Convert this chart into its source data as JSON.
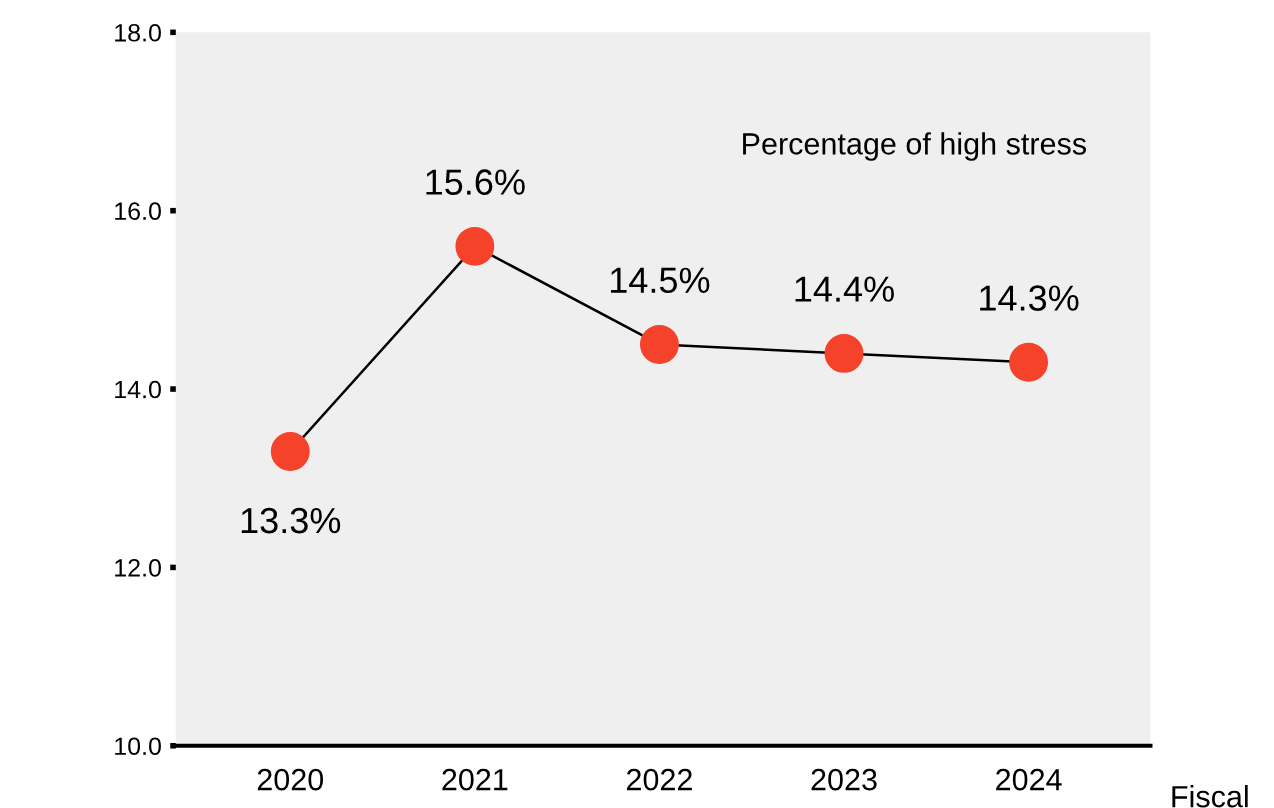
{
  "chart_data": {
    "type": "line",
    "xlabel": "Fiscal",
    "categories": [
      "2020",
      "2021",
      "2022",
      "2023",
      "2024"
    ],
    "series": [
      {
        "color": "#f5432b",
        "values": [
          13.3,
          15.6,
          14.5,
          14.4,
          14.3
        ],
        "value_labels": [
          "13.3%",
          "15.6%",
          "14.5%",
          "14.4%",
          "14.3%"
        ]
      }
    ],
    "annotations": [
      "Percentage of high stress"
    ],
    "ylim": [
      10,
      18
    ],
    "yticks": [
      {
        "value": 10,
        "label": "10.0"
      },
      {
        "value": 12,
        "label": "12.0"
      },
      {
        "value": 14,
        "label": "14.0"
      },
      {
        "value": 16,
        "label": "16.0"
      },
      {
        "value": 18,
        "label": "18.0"
      }
    ],
    "marker": "circle",
    "line_style": "solid",
    "grid": false,
    "legend": false
  }
}
